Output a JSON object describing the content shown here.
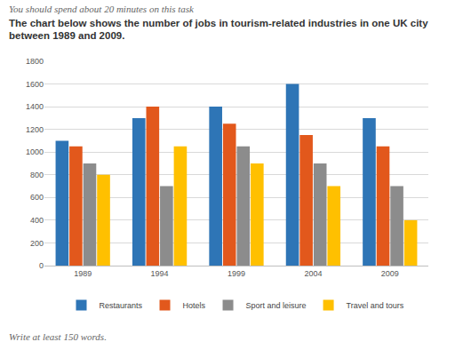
{
  "chart_data": {
    "type": "bar",
    "subtitle": "You should spend about 20 minutes on this task",
    "title": "The chart below shows the number of jobs in tourism-related industries in one UK city between 1989 and 2009.",
    "annotations": [
      "Write at least 150 words."
    ],
    "categories": [
      "1989",
      "1994",
      "1999",
      "2004",
      "2009"
    ],
    "series": [
      {
        "name": "Restaurants",
        "color": "#2e75b6",
        "values": [
          1100,
          1300,
          1400,
          1600,
          1300
        ]
      },
      {
        "name": "Hotels",
        "color": "#e2581c",
        "values": [
          1050,
          1400,
          1250,
          1150,
          1050
        ]
      },
      {
        "name": "Sport and leisure",
        "color": "#8c8c8c",
        "values": [
          900,
          700,
          1050,
          900,
          700
        ]
      },
      {
        "name": "Travel and tours",
        "color": "#ffc000",
        "values": [
          800,
          1050,
          900,
          700,
          400
        ]
      }
    ],
    "ylim": [
      0,
      1800
    ],
    "yticks": [
      0,
      200,
      400,
      600,
      800,
      1000,
      1200,
      1400,
      1600,
      1800
    ],
    "grid": true,
    "legend": "bottom"
  }
}
